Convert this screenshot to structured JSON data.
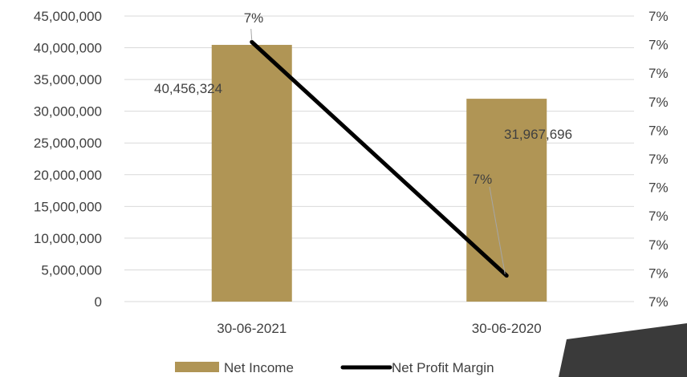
{
  "chart_data": {
    "type": "bar",
    "categories": [
      "30-06-2021",
      "30-06-2020"
    ],
    "series": [
      {
        "name": "Net Income",
        "kind": "bar",
        "axis": "left",
        "color": "#B09555",
        "values": [
          40456324,
          31967696
        ],
        "data_labels": [
          "40,456,324",
          "31,967,696"
        ]
      },
      {
        "name": "Net Profit Margin",
        "kind": "line",
        "axis": "right",
        "color": "#000000",
        "values": [
          0.07,
          0.0691
        ],
        "data_labels": [
          "7%",
          "7%"
        ]
      }
    ],
    "y_left": {
      "ylim": [
        0,
        45000000
      ],
      "ticks": [
        "0",
        "5,000,000",
        "10,000,000",
        "15,000,000",
        "20,000,000",
        "25,000,000",
        "30,000,000",
        "35,000,000",
        "40,000,000",
        "45,000,000"
      ]
    },
    "y_right": {
      "ylim": [
        0.069,
        0.0701
      ],
      "ticks": [
        "7%",
        "7%",
        "7%",
        "7%",
        "7%",
        "7%",
        "7%",
        "7%",
        "7%",
        "7%",
        "7%"
      ]
    },
    "grid": true,
    "legend_position": "bottom"
  }
}
